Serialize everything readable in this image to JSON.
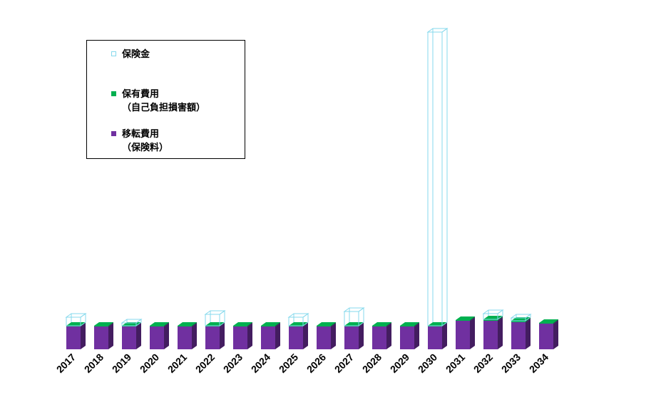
{
  "chart_data": {
    "type": "bar",
    "stacked": true,
    "style": "3d-column",
    "categories": [
      "2017",
      "2018",
      "2019",
      "2020",
      "2021",
      "2022",
      "2023",
      "2024",
      "2025",
      "2026",
      "2027",
      "2028",
      "2029",
      "2030",
      "2031",
      "2032",
      "2033",
      "2034"
    ],
    "series": [
      {
        "name": "移転費用",
        "name_line2": "（保険料）",
        "color": "#7030a0",
        "values": [
          32,
          32,
          32,
          32,
          32,
          32,
          32,
          32,
          32,
          32,
          32,
          32,
          32,
          32,
          40,
          40,
          38,
          36
        ]
      },
      {
        "name": "保有費用",
        "name_line2": "（自己負担損害額）",
        "color": "#00b050",
        "values": [
          1,
          1,
          1,
          1,
          1,
          1,
          1,
          1,
          1,
          1,
          1,
          1,
          1,
          1,
          1,
          2,
          2,
          1
        ]
      },
      {
        "name": "保険金",
        "color": "#86d9ec",
        "fill": "none",
        "values": [
          12,
          0,
          4,
          0,
          0,
          16,
          0,
          0,
          12,
          0,
          20,
          0,
          0,
          412,
          0,
          8,
          4,
          0
        ]
      }
    ],
    "legend_position": "top-left",
    "grid": false
  }
}
